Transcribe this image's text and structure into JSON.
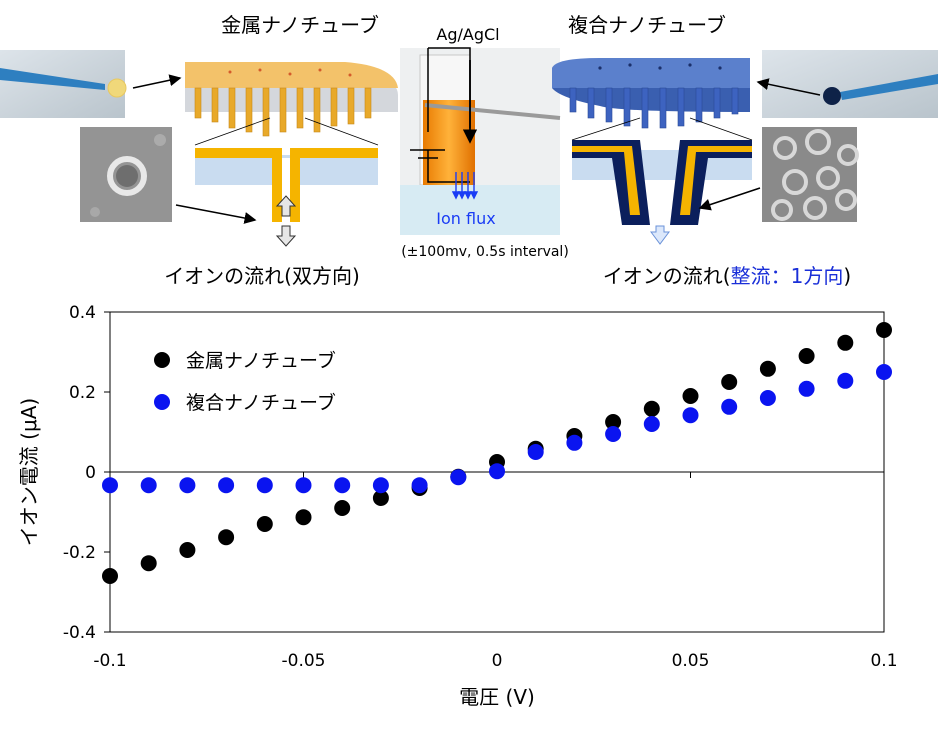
{
  "top": {
    "metal_title": "金属ナノチューブ",
    "composite_title": "複合ナノチューブ",
    "electrode_label": "Ag/AgCl",
    "ion_flux_label": "Ion flux",
    "condition_label": "(±100mv, 0.5s interval)",
    "flow_bidirectional": "イオンの流れ(双方向)",
    "flow_rect_prefix": "イオンの流れ(",
    "flow_rect_highlight": "整流：1方向",
    "flow_rect_suffix": ")"
  },
  "colors": {
    "metal_series": "#000000",
    "composite_series": "#0a14f0",
    "gold": "#f5b400",
    "navy": "#0b1f5c",
    "membrane_blue": "#4a74c9",
    "flux_blue": "#1a3cf5",
    "highlight_text": "#1a2fd8"
  },
  "chart_data": {
    "type": "scatter",
    "title": "",
    "xlabel": "電圧 (V)",
    "ylabel": "イオン電流 (μA)",
    "xlim": [
      -0.1,
      0.1
    ],
    "ylim": [
      -0.4,
      0.4
    ],
    "x_ticks": [
      -0.1,
      -0.05,
      0,
      0.05,
      0.1
    ],
    "x_tick_labels": [
      "-0.1",
      "-0.05",
      "0",
      "0.05",
      "0.1"
    ],
    "y_ticks": [
      -0.4,
      -0.2,
      0,
      0.2,
      0.4
    ],
    "y_tick_labels": [
      "-0.4",
      "-0.2",
      "0",
      "0.2",
      "0.4"
    ],
    "grid": false,
    "legend_position": "top-left",
    "x": [
      -0.1,
      -0.09,
      -0.08,
      -0.07,
      -0.06,
      -0.05,
      -0.04,
      -0.03,
      -0.02,
      -0.01,
      0,
      0.01,
      0.02,
      0.03,
      0.04,
      0.05,
      0.06,
      0.07,
      0.08,
      0.09,
      0.1
    ],
    "series": [
      {
        "name": "金属ナノチューブ",
        "color": "#000000",
        "values": [
          -0.26,
          -0.228,
          -0.195,
          -0.163,
          -0.13,
          -0.113,
          -0.09,
          -0.065,
          -0.04,
          -0.012,
          0.025,
          0.058,
          0.09,
          0.125,
          0.158,
          0.19,
          0.225,
          0.258,
          0.29,
          0.323,
          0.355
        ]
      },
      {
        "name": "複合ナノチューブ",
        "color": "#0a14f0",
        "values": [
          -0.033,
          -0.033,
          -0.033,
          -0.033,
          -0.033,
          -0.033,
          -0.033,
          -0.033,
          -0.033,
          -0.013,
          0.002,
          0.05,
          0.073,
          0.095,
          0.12,
          0.142,
          0.163,
          0.185,
          0.208,
          0.228,
          0.25
        ]
      }
    ]
  }
}
